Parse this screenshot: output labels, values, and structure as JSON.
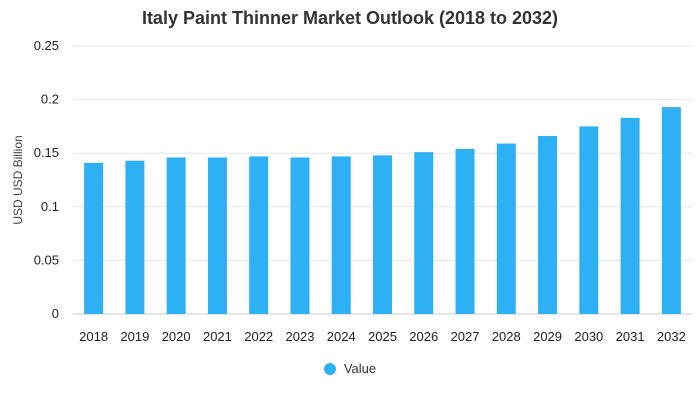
{
  "chart_data": {
    "type": "bar",
    "title": "Italy Paint Thinner Market Outlook (2018 to 2032)",
    "xlabel": "",
    "ylabel": "USD USD Billion",
    "categories": [
      "2018",
      "2019",
      "2020",
      "2021",
      "2022",
      "2023",
      "2024",
      "2025",
      "2026",
      "2027",
      "2028",
      "2029",
      "2030",
      "2031",
      "2032"
    ],
    "series": [
      {
        "name": "Value",
        "color": "#2eb0f5",
        "values": [
          0.141,
          0.143,
          0.146,
          0.146,
          0.147,
          0.146,
          0.147,
          0.148,
          0.151,
          0.154,
          0.159,
          0.166,
          0.175,
          0.183,
          0.193
        ]
      }
    ],
    "ylim": [
      0,
      0.25
    ],
    "yticks": [
      "0",
      "0.05",
      "0.1",
      "0.15",
      "0.2",
      "0.25"
    ],
    "grid": true,
    "legend_position": "bottom"
  }
}
